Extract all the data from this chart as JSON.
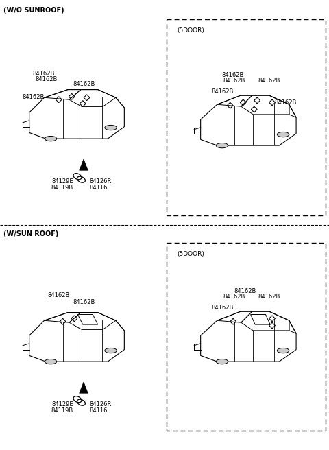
{
  "background_color": "#ffffff",
  "text_color": "#000000",
  "section1_label": "(W/O SUNROOF)",
  "section2_label": "(W/SUN ROOF)",
  "subdoor_label": "(5DOOR)",
  "fig_width": 4.8,
  "fig_height": 6.56,
  "dpi": 100
}
